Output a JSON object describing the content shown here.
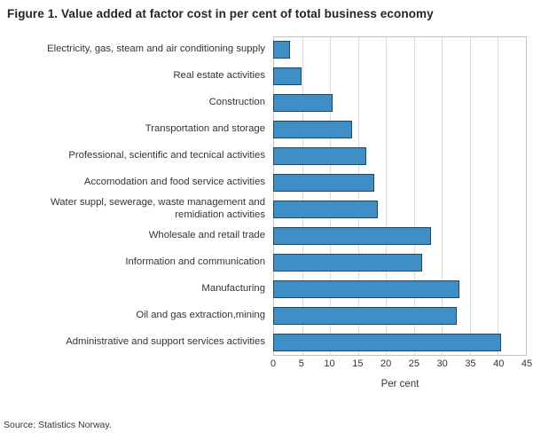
{
  "page": {
    "title": "Figure 1. Value added at factor cost in per cent of total business economy",
    "source": "Source: Statistics Norway."
  },
  "chart_data": {
    "type": "bar",
    "orientation": "horizontal",
    "title": "Figure 1. Value added at factor cost in per cent of total business economy",
    "categories": [
      "Electricity, gas, steam and air conditioning supply",
      "Real estate activities",
      "Construction",
      "Transportation and storage",
      "Professional, scientific and tecnical activities",
      "Accomodation and food service activities",
      "Water suppl, sewerage, waste management and remidiation activities",
      "Wholesale and retail trade",
      "Information and communication",
      "Manufacturing",
      "Oil and gas extraction,mining",
      "Administrative and support services activities"
    ],
    "values": [
      3,
      5,
      10.5,
      14,
      16.5,
      18,
      18.5,
      28,
      26.5,
      33,
      32.5,
      40.5
    ],
    "xlabel": "Per cent",
    "xlim": [
      0,
      45
    ],
    "xticks": [
      0,
      5,
      10,
      15,
      20,
      25,
      30,
      35,
      40,
      45
    ],
    "grid": true,
    "legend": "none",
    "bar_color": "#3f8ec6",
    "bar_border_color": "#1c4a63",
    "source": "Source: Statistics Norway."
  }
}
